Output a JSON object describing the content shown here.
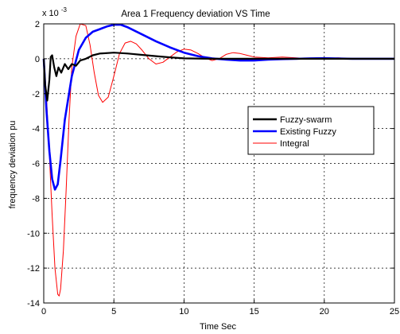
{
  "chart_data": {
    "type": "line",
    "title": "Area 1 Frequency  deviation VS Time",
    "xlabel": "Time  Sec",
    "ylabel": "frequency deviation  pu",
    "y_scale_note": "x 10",
    "y_scale_exponent": "-3",
    "xlim": [
      0,
      25
    ],
    "ylim": [
      -14,
      2
    ],
    "x_ticks": [
      0,
      5,
      10,
      15,
      20,
      25
    ],
    "y_ticks": [
      2,
      0,
      -2,
      -4,
      -6,
      -8,
      -10,
      -12,
      -14
    ],
    "grid": true,
    "legend_position": "right",
    "series": [
      {
        "name": "Fuzzy-swarm",
        "color": "#000000",
        "x": [
          0,
          0.1,
          0.25,
          0.4,
          0.5,
          0.6,
          0.75,
          0.9,
          1.05,
          1.25,
          1.5,
          1.75,
          2.0,
          2.3,
          2.6,
          3.0,
          3.5,
          4.0,
          5.0,
          6.0,
          7.0,
          8.0,
          9.0,
          10.0,
          12.0,
          15.0,
          20.0,
          25.0
        ],
        "y": [
          0,
          -1.5,
          -2.4,
          -1.2,
          0.1,
          0.2,
          -0.5,
          -1.0,
          -0.5,
          -0.8,
          -0.3,
          -0.6,
          -0.3,
          -0.4,
          -0.1,
          0.0,
          0.2,
          0.3,
          0.35,
          0.3,
          0.22,
          0.15,
          0.08,
          0.02,
          0.0,
          0.0,
          0.0,
          0.0
        ]
      },
      {
        "name": "Existing Fuzzy",
        "color": "#0000ff",
        "x": [
          0,
          0.2,
          0.4,
          0.6,
          0.8,
          1.0,
          1.2,
          1.5,
          2.0,
          2.5,
          3.0,
          3.5,
          4.0,
          4.5,
          5.0,
          5.5,
          6.0,
          7.0,
          8.0,
          9.0,
          10.0,
          11.0,
          12.0,
          13.0,
          14.0,
          15.0,
          16.0,
          17.0,
          18.0,
          19.0,
          20.0,
          22.0,
          25.0
        ],
        "y": [
          0,
          -3.0,
          -5.3,
          -6.9,
          -7.5,
          -7.2,
          -5.8,
          -3.5,
          -1.0,
          0.5,
          1.2,
          1.55,
          1.7,
          1.85,
          1.95,
          1.95,
          1.8,
          1.4,
          1.0,
          0.65,
          0.35,
          0.15,
          0.02,
          -0.05,
          -0.1,
          -0.1,
          -0.05,
          -0.02,
          0.0,
          0.02,
          0.03,
          0.0,
          0.0
        ]
      },
      {
        "name": "Integral",
        "color": "#ff0000",
        "x": [
          0,
          0.2,
          0.4,
          0.6,
          0.8,
          1.0,
          1.1,
          1.2,
          1.4,
          1.6,
          1.8,
          2.0,
          2.3,
          2.6,
          3.0,
          3.3,
          3.6,
          3.9,
          4.2,
          4.6,
          5.0,
          5.4,
          5.8,
          6.2,
          6.6,
          7.0,
          7.5,
          8.0,
          8.5,
          9.0,
          9.5,
          10.0,
          10.5,
          11.0,
          11.5,
          12.0,
          12.5,
          13.0,
          13.5,
          14.0,
          14.5,
          15.0,
          16.0,
          17.0,
          18.0,
          19.0,
          20.0,
          21.0,
          22.0,
          25.0
        ],
        "y": [
          0,
          -2.2,
          -5.5,
          -9.0,
          -12.0,
          -13.5,
          -13.6,
          -13.2,
          -11.0,
          -7.5,
          -3.5,
          -0.5,
          1.3,
          2.0,
          1.9,
          0.8,
          -0.8,
          -2.1,
          -2.5,
          -2.2,
          -1.0,
          0.3,
          0.9,
          1.0,
          0.85,
          0.5,
          0.0,
          -0.3,
          -0.2,
          0.1,
          0.4,
          0.55,
          0.5,
          0.3,
          0.05,
          -0.1,
          0.0,
          0.25,
          0.35,
          0.3,
          0.2,
          0.1,
          0.05,
          0.1,
          0.05,
          0.0,
          0.0,
          0.05,
          0.0,
          0.0
        ]
      }
    ]
  }
}
